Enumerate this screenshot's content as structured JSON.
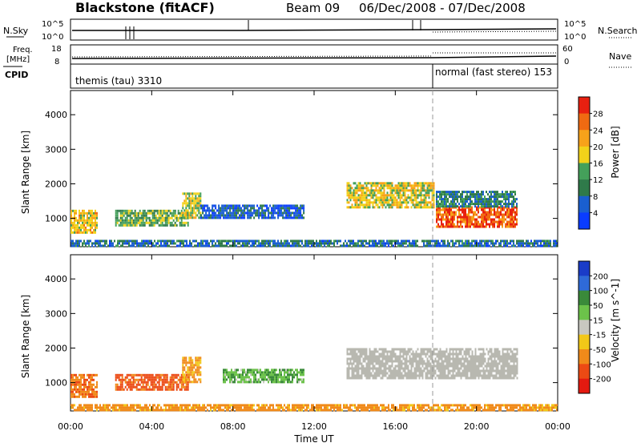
{
  "header": {
    "station": "Blackstone (fitACF)",
    "beam": "Beam 09",
    "date_range": "06/Dec/2008 - 07/Dec/2008"
  },
  "top_panels": {
    "nsky": {
      "left_label": "N.Sky",
      "right_label": "N.Search",
      "left_ticks": [
        "10^5",
        "10^0"
      ],
      "right_ticks": [
        "10^5",
        "10^0"
      ]
    },
    "freq": {
      "left_label_1": "Freq.",
      "left_label_2": "[MHz]",
      "right_label": "Nave",
      "left_ticks": [
        "18",
        "8"
      ],
      "right_ticks": [
        "60",
        "0"
      ]
    },
    "cpid": {
      "label": "CPID",
      "mode_1": "themis (tau) 3310",
      "mode_2": "normal (fast stereo) 153"
    }
  },
  "colors": {
    "power_scale": [
      "#0a3cff",
      "#1a5fd0",
      "#2f7a4a",
      "#44a05a",
      "#f2d21a",
      "#f7a21a",
      "#f06a12",
      "#e82010"
    ],
    "velocity_scale": [
      "#1a3cc8",
      "#2f6ad8",
      "#3a8a3a",
      "#6cc24a",
      "#c8c8c0",
      "#f2c818",
      "#f08a1a",
      "#ec4a14",
      "#e41a10"
    ],
    "ground_scatter": "#b8b8b0"
  },
  "chart_data": [
    {
      "type": "heatmap",
      "title": "",
      "ylabel": "Slant Range [km]",
      "xlabel": "",
      "colorbar_label": "Power [dB]",
      "colorbar_ticks": [
        "4",
        "8",
        "12",
        "16",
        "20",
        "24",
        "28"
      ],
      "colorbar_range": [
        0,
        32
      ],
      "y_ticks": [
        "1000",
        "2000",
        "3000",
        "4000"
      ],
      "ylim": [
        180,
        4700
      ],
      "x_ticks": [
        "00:00",
        "04:00",
        "08:00",
        "12:00",
        "16:00",
        "20:00",
        "00:00"
      ],
      "xlim_hours": [
        0,
        24
      ],
      "regions": [
        {
          "t0": 0.0,
          "t1": 1.3,
          "r0": 620,
          "r1": 1250,
          "power": 20
        },
        {
          "t0": 2.2,
          "t1": 5.8,
          "r0": 780,
          "r1": 1250,
          "power": 14
        },
        {
          "t0": 5.5,
          "t1": 6.4,
          "r0": 1050,
          "r1": 1750,
          "power": 17
        },
        {
          "t0": 6.4,
          "t1": 11.5,
          "r0": 1000,
          "r1": 1400,
          "power": 6
        },
        {
          "t0": 13.6,
          "t1": 17.9,
          "r0": 1350,
          "r1": 2050,
          "power": 18
        },
        {
          "t0": 18.0,
          "t1": 22.0,
          "r0": 750,
          "r1": 1350,
          "power": 27
        },
        {
          "t0": 18.0,
          "t1": 22.0,
          "r0": 1350,
          "r1": 1800,
          "power": 10
        },
        {
          "t0": 0.0,
          "t1": 24.0,
          "r0": 200,
          "r1": 380,
          "power": 8
        }
      ]
    },
    {
      "type": "heatmap",
      "title": "",
      "ylabel": "Slant Range [km]",
      "xlabel": "Time UT",
      "colorbar_label": "Velocity [m s^-1]",
      "colorbar_ticks": [
        "200",
        "100",
        "50",
        "15",
        "-15",
        "-50",
        "-100",
        "-200"
      ],
      "colorbar_range": [
        -250,
        250
      ],
      "y_ticks": [
        "1000",
        "2000",
        "3000",
        "4000"
      ],
      "ylim": [
        180,
        4700
      ],
      "x_ticks": [
        "00:00",
        "04:00",
        "08:00",
        "12:00",
        "16:00",
        "20:00",
        "00:00"
      ],
      "xlim_hours": [
        0,
        24
      ],
      "regions": [
        {
          "t0": 0.0,
          "t1": 1.3,
          "r0": 620,
          "r1": 1250,
          "velocity": -90
        },
        {
          "t0": 2.2,
          "t1": 5.8,
          "r0": 780,
          "r1": 1250,
          "velocity": -120
        },
        {
          "t0": 5.5,
          "t1": 6.4,
          "r0": 1050,
          "r1": 1750,
          "velocity": -60
        },
        {
          "t0": 7.5,
          "t1": 11.5,
          "r0": 1000,
          "r1": 1400,
          "velocity": 40
        },
        {
          "t0": 13.6,
          "t1": 22.0,
          "r0": 1100,
          "r1": 2000,
          "velocity": 0
        },
        {
          "t0": 0.0,
          "t1": 24.0,
          "r0": 200,
          "r1": 380,
          "velocity": -70
        }
      ]
    }
  ]
}
